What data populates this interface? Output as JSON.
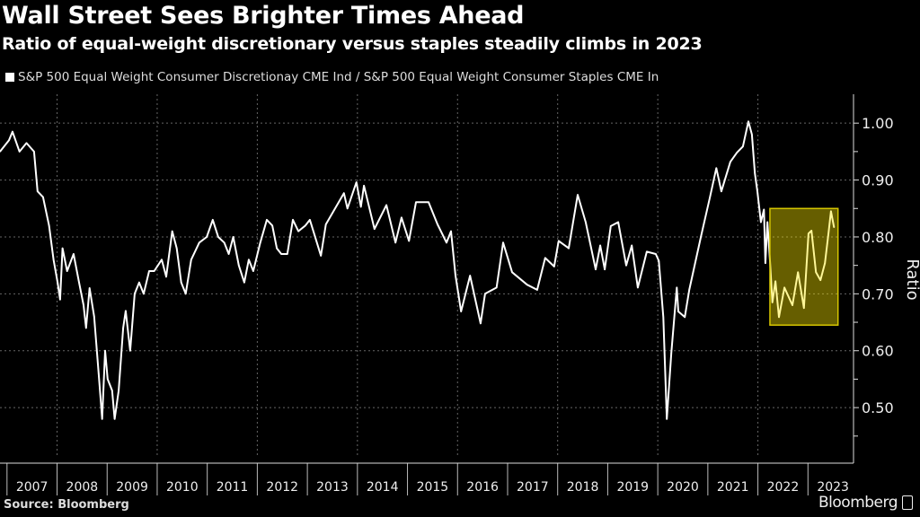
{
  "header": {
    "title": "Wall Street Sees Brighter Times Ahead",
    "subtitle": "Ratio of equal-weight discretionary versus staples steadily climbs in 2023"
  },
  "footer": {
    "source": "Source: Bloomberg",
    "logo": "Bloomberg"
  },
  "colors": {
    "background": "#000000",
    "line": "#ffffff",
    "grid": "#666666",
    "highlight_fill": "#ffeb00",
    "highlight_border": "#d4c400"
  },
  "chart_data": {
    "type": "line",
    "title": "Wall Street Sees Brighter Times Ahead",
    "subtitle": "Ratio of equal-weight discretionary versus staples steadily climbs in 2023",
    "xlabel": "",
    "ylabel": "Ratio",
    "xlim": [
      2006.86,
      2023.91
    ],
    "ylim": [
      0.415,
      1.035
    ],
    "y_axis_side": "right",
    "y_ticks": [
      0.5,
      0.6,
      0.7,
      0.8,
      0.9,
      1.0
    ],
    "y_tick_labels": [
      "0.50",
      "0.60",
      "0.70",
      "0.80",
      "0.90",
      "1.00"
    ],
    "x_tick_labels": [
      "2007",
      "2008",
      "2009",
      "2010",
      "2011",
      "2012",
      "2013",
      "2014",
      "2015",
      "2016",
      "2017",
      "2018",
      "2019",
      "2020",
      "2021",
      "2022",
      "2023"
    ],
    "grid": true,
    "legend_placement": "top-left",
    "highlight_region": {
      "x": [
        2022.24,
        2023.6
      ],
      "y": [
        0.645,
        0.85
      ]
    },
    "series": [
      {
        "name": "S&P 500 Equal Weight Consumer Discretionay CME Ind / S&P 500 Equal Weight Consumer Staples CME In",
        "x": [
          2006.86,
          2007.04,
          2007.11,
          2007.25,
          2007.39,
          2007.54,
          2007.61,
          2007.72,
          2007.84,
          2007.93,
          2008.01,
          2008.06,
          2008.11,
          2008.2,
          2008.33,
          2008.44,
          2008.53,
          2008.58,
          2008.65,
          2008.74,
          2008.83,
          2008.9,
          2008.96,
          2009.01,
          2009.1,
          2009.15,
          2009.23,
          2009.32,
          2009.37,
          2009.46,
          2009.55,
          2009.64,
          2009.73,
          2009.84,
          2009.94,
          2010.09,
          2010.18,
          2010.3,
          2010.39,
          2010.48,
          2010.57,
          2010.68,
          2010.84,
          2010.99,
          2011.11,
          2011.22,
          2011.34,
          2011.43,
          2011.52,
          2011.63,
          2011.74,
          2011.83,
          2011.92,
          2012.06,
          2012.19,
          2012.3,
          2012.39,
          2012.48,
          2012.6,
          2012.71,
          2012.82,
          2012.96,
          2013.05,
          2013.27,
          2013.37,
          2013.73,
          2013.8,
          2013.98,
          2014.07,
          2014.13,
          2014.34,
          2014.58,
          2014.76,
          2014.88,
          2015.03,
          2015.17,
          2015.42,
          2015.6,
          2015.78,
          2015.87,
          2015.96,
          2016.07,
          2016.25,
          2016.46,
          2016.55,
          2016.78,
          2016.91,
          2017.09,
          2017.39,
          2017.59,
          2017.75,
          2017.93,
          2018.02,
          2018.22,
          2018.4,
          2018.56,
          2018.76,
          2018.85,
          2018.94,
          2019.06,
          2019.21,
          2019.37,
          2019.48,
          2019.6,
          2019.78,
          2019.96,
          2020.02,
          2020.11,
          2020.18,
          2020.27,
          2020.38,
          2020.41,
          2020.54,
          2020.63,
          2020.86,
          2021.04,
          2021.17,
          2021.27,
          2021.45,
          2021.58,
          2021.7,
          2021.81,
          2021.88,
          2021.94,
          2021.99,
          2022.06,
          2022.12,
          2022.15,
          2022.19,
          2022.24,
          2022.29,
          2022.35,
          2022.42,
          2022.53,
          2022.69,
          2022.8,
          2022.92,
          2023.01,
          2023.07,
          2023.16,
          2023.25,
          2023.34,
          2023.41,
          2023.46,
          2023.52
        ],
        "values": [
          0.95,
          0.97,
          0.985,
          0.95,
          0.965,
          0.95,
          0.88,
          0.87,
          0.82,
          0.76,
          0.72,
          0.69,
          0.78,
          0.74,
          0.77,
          0.72,
          0.68,
          0.64,
          0.71,
          0.66,
          0.56,
          0.48,
          0.6,
          0.55,
          0.53,
          0.48,
          0.53,
          0.64,
          0.67,
          0.6,
          0.7,
          0.72,
          0.7,
          0.74,
          0.74,
          0.76,
          0.73,
          0.81,
          0.78,
          0.72,
          0.7,
          0.76,
          0.79,
          0.8,
          0.83,
          0.8,
          0.79,
          0.77,
          0.8,
          0.75,
          0.72,
          0.76,
          0.74,
          0.79,
          0.83,
          0.82,
          0.78,
          0.77,
          0.77,
          0.83,
          0.81,
          0.82,
          0.83,
          0.767,
          0.822,
          0.877,
          0.85,
          0.896,
          0.853,
          0.89,
          0.814,
          0.856,
          0.79,
          0.834,
          0.793,
          0.861,
          0.861,
          0.822,
          0.79,
          0.81,
          0.732,
          0.669,
          0.732,
          0.648,
          0.7,
          0.711,
          0.79,
          0.738,
          0.716,
          0.707,
          0.763,
          0.748,
          0.793,
          0.78,
          0.874,
          0.826,
          0.743,
          0.785,
          0.743,
          0.819,
          0.826,
          0.75,
          0.785,
          0.711,
          0.774,
          0.77,
          0.758,
          0.659,
          0.48,
          0.596,
          0.711,
          0.669,
          0.659,
          0.707,
          0.8,
          0.869,
          0.921,
          0.88,
          0.932,
          0.948,
          0.959,
          1.003,
          0.98,
          0.912,
          0.88,
          0.826,
          0.848,
          0.754,
          0.826,
          0.758,
          0.685,
          0.722,
          0.659,
          0.711,
          0.68,
          0.738,
          0.675,
          0.806,
          0.811,
          0.738,
          0.724,
          0.754,
          0.806,
          0.845,
          0.817
        ]
      }
    ]
  }
}
